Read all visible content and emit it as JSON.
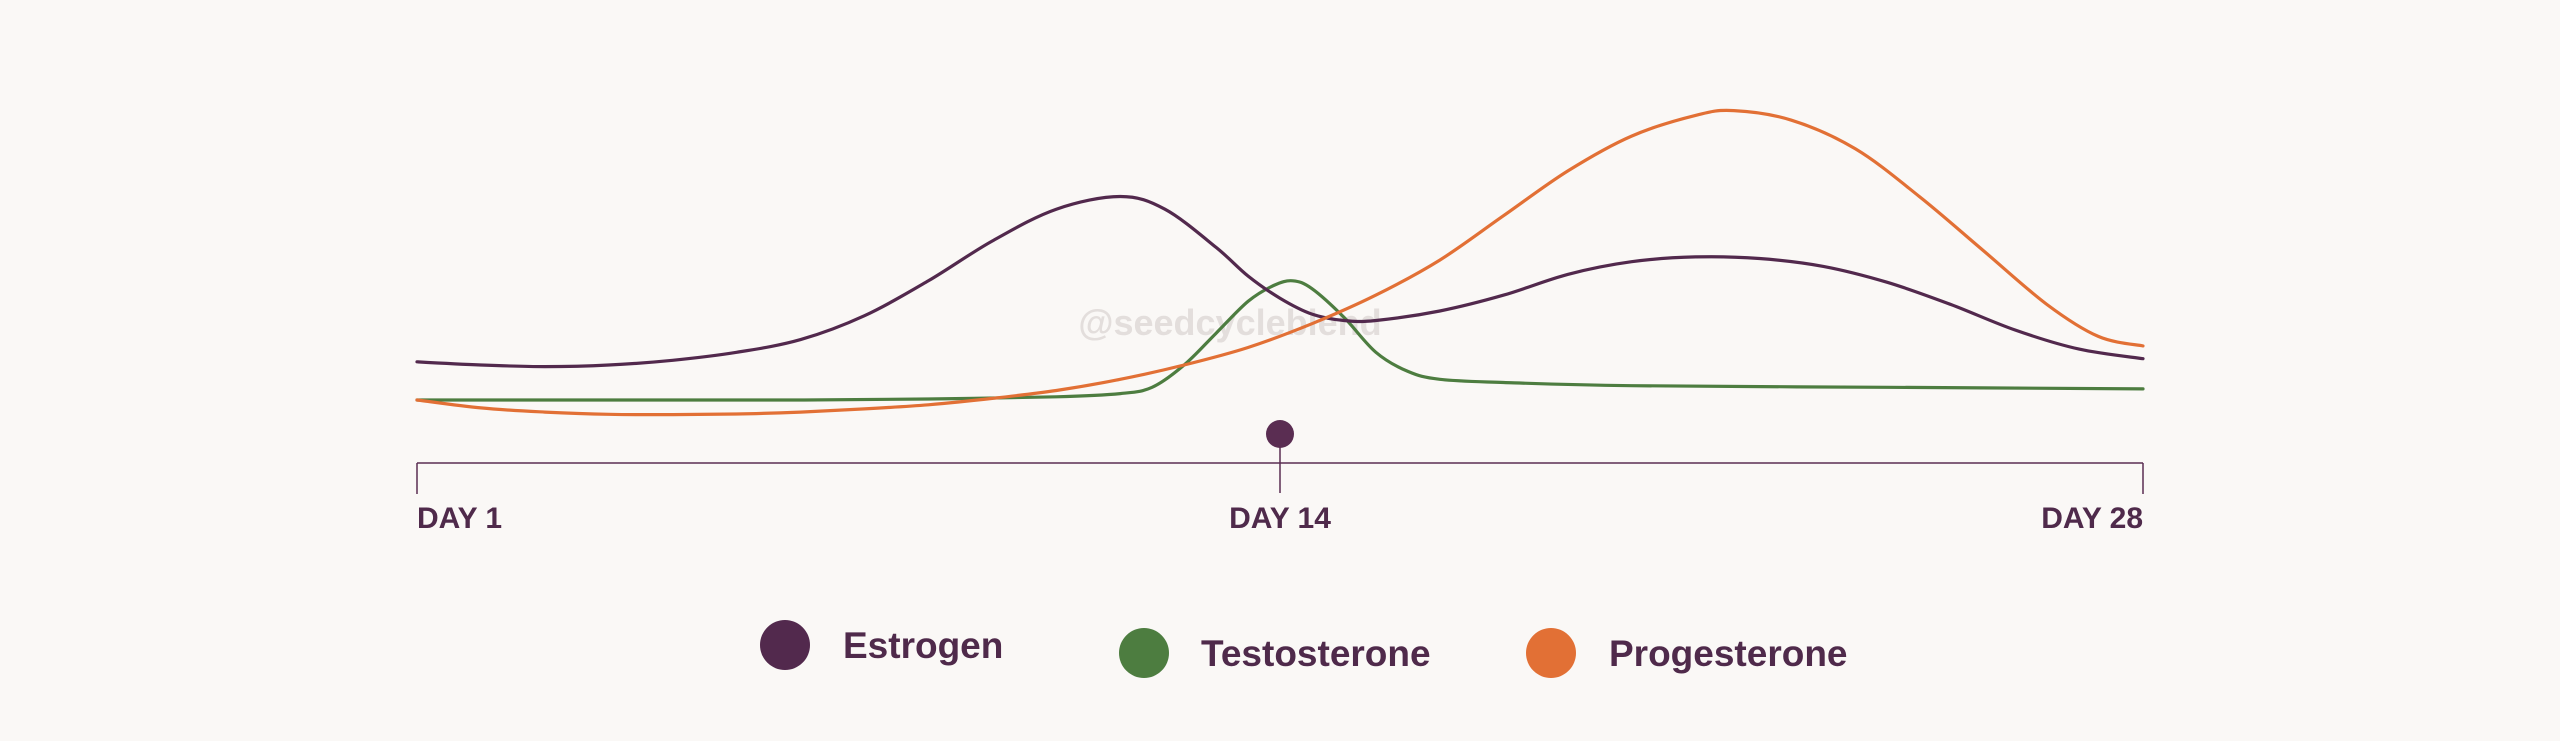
{
  "chart_data": {
    "type": "line",
    "title": "",
    "xlabel": "",
    "ylabel": "",
    "xlim": [
      1,
      28
    ],
    "ylim": [
      0,
      100
    ],
    "grid": false,
    "legend_placement": "bottom-center",
    "x_ticks": [
      {
        "x": 1,
        "label": "DAY 1"
      },
      {
        "x": 14.5,
        "label": "DAY 14"
      },
      {
        "x": 28,
        "label": "DAY 28"
      }
    ],
    "marker": {
      "x": 14.5,
      "name": "ovulation-marker"
    },
    "watermark": "@seedcycleblend",
    "colors": {
      "axis": "#5a2d52",
      "label": "#4f2a4b",
      "watermark": "#e3dedc",
      "background": "#faf8f6"
    },
    "series": [
      {
        "name": "Estrogen",
        "color": "#52294d",
        "points": [
          [
            1,
            12
          ],
          [
            2,
            11
          ],
          [
            3,
            10.5
          ],
          [
            4,
            11
          ],
          [
            5,
            12.5
          ],
          [
            6,
            15
          ],
          [
            7,
            19
          ],
          [
            8,
            26.5
          ],
          [
            9,
            37.5
          ],
          [
            10,
            50
          ],
          [
            11,
            60
          ],
          [
            12,
            64
          ],
          [
            12.7,
            60
          ],
          [
            13.5,
            48
          ],
          [
            14,
            39
          ],
          [
            14.5,
            32
          ],
          [
            15,
            27
          ],
          [
            15.5,
            25
          ],
          [
            16,
            25
          ],
          [
            17,
            28
          ],
          [
            18,
            33
          ],
          [
            19,
            39.5
          ],
          [
            20,
            43.5
          ],
          [
            21,
            45
          ],
          [
            22,
            44.5
          ],
          [
            23,
            42
          ],
          [
            24,
            37
          ],
          [
            25,
            30
          ],
          [
            26,
            22
          ],
          [
            27,
            16
          ],
          [
            28,
            13
          ]
        ]
      },
      {
        "name": "Testosterone",
        "color": "#4d7d40",
        "points": [
          [
            1,
            0
          ],
          [
            3,
            0
          ],
          [
            5,
            0
          ],
          [
            7,
            0
          ],
          [
            9,
            0.3
          ],
          [
            11,
            1
          ],
          [
            12,
            2
          ],
          [
            12.5,
            4
          ],
          [
            13,
            11
          ],
          [
            13.5,
            21
          ],
          [
            14,
            31
          ],
          [
            14.4,
            36
          ],
          [
            14.7,
            37.5
          ],
          [
            15,
            35
          ],
          [
            15.5,
            26
          ],
          [
            16,
            15
          ],
          [
            16.5,
            9
          ],
          [
            17,
            6.5
          ],
          [
            18,
            5.5
          ],
          [
            20,
            4.5
          ],
          [
            24,
            4
          ],
          [
            28,
            3.5
          ]
        ]
      },
      {
        "name": "Progesterone",
        "color": "#e27035",
        "points": [
          [
            1,
            0
          ],
          [
            2,
            -2.5
          ],
          [
            3,
            -3.8
          ],
          [
            4,
            -4.5
          ],
          [
            5,
            -4.6
          ],
          [
            6,
            -4.4
          ],
          [
            7,
            -3.8
          ],
          [
            8,
            -2.8
          ],
          [
            9,
            -1.5
          ],
          [
            10,
            0.5
          ],
          [
            11,
            3
          ],
          [
            12,
            6.5
          ],
          [
            13,
            11
          ],
          [
            14,
            16.5
          ],
          [
            15,
            24
          ],
          [
            16,
            33
          ],
          [
            17,
            44
          ],
          [
            18,
            58
          ],
          [
            19,
            72
          ],
          [
            20,
            83
          ],
          [
            21,
            89.5
          ],
          [
            21.6,
            91
          ],
          [
            22.5,
            88
          ],
          [
            23.5,
            79
          ],
          [
            24.5,
            64
          ],
          [
            25.5,
            47
          ],
          [
            26.5,
            30
          ],
          [
            27.3,
            20
          ],
          [
            28,
            17
          ]
        ]
      }
    ]
  }
}
